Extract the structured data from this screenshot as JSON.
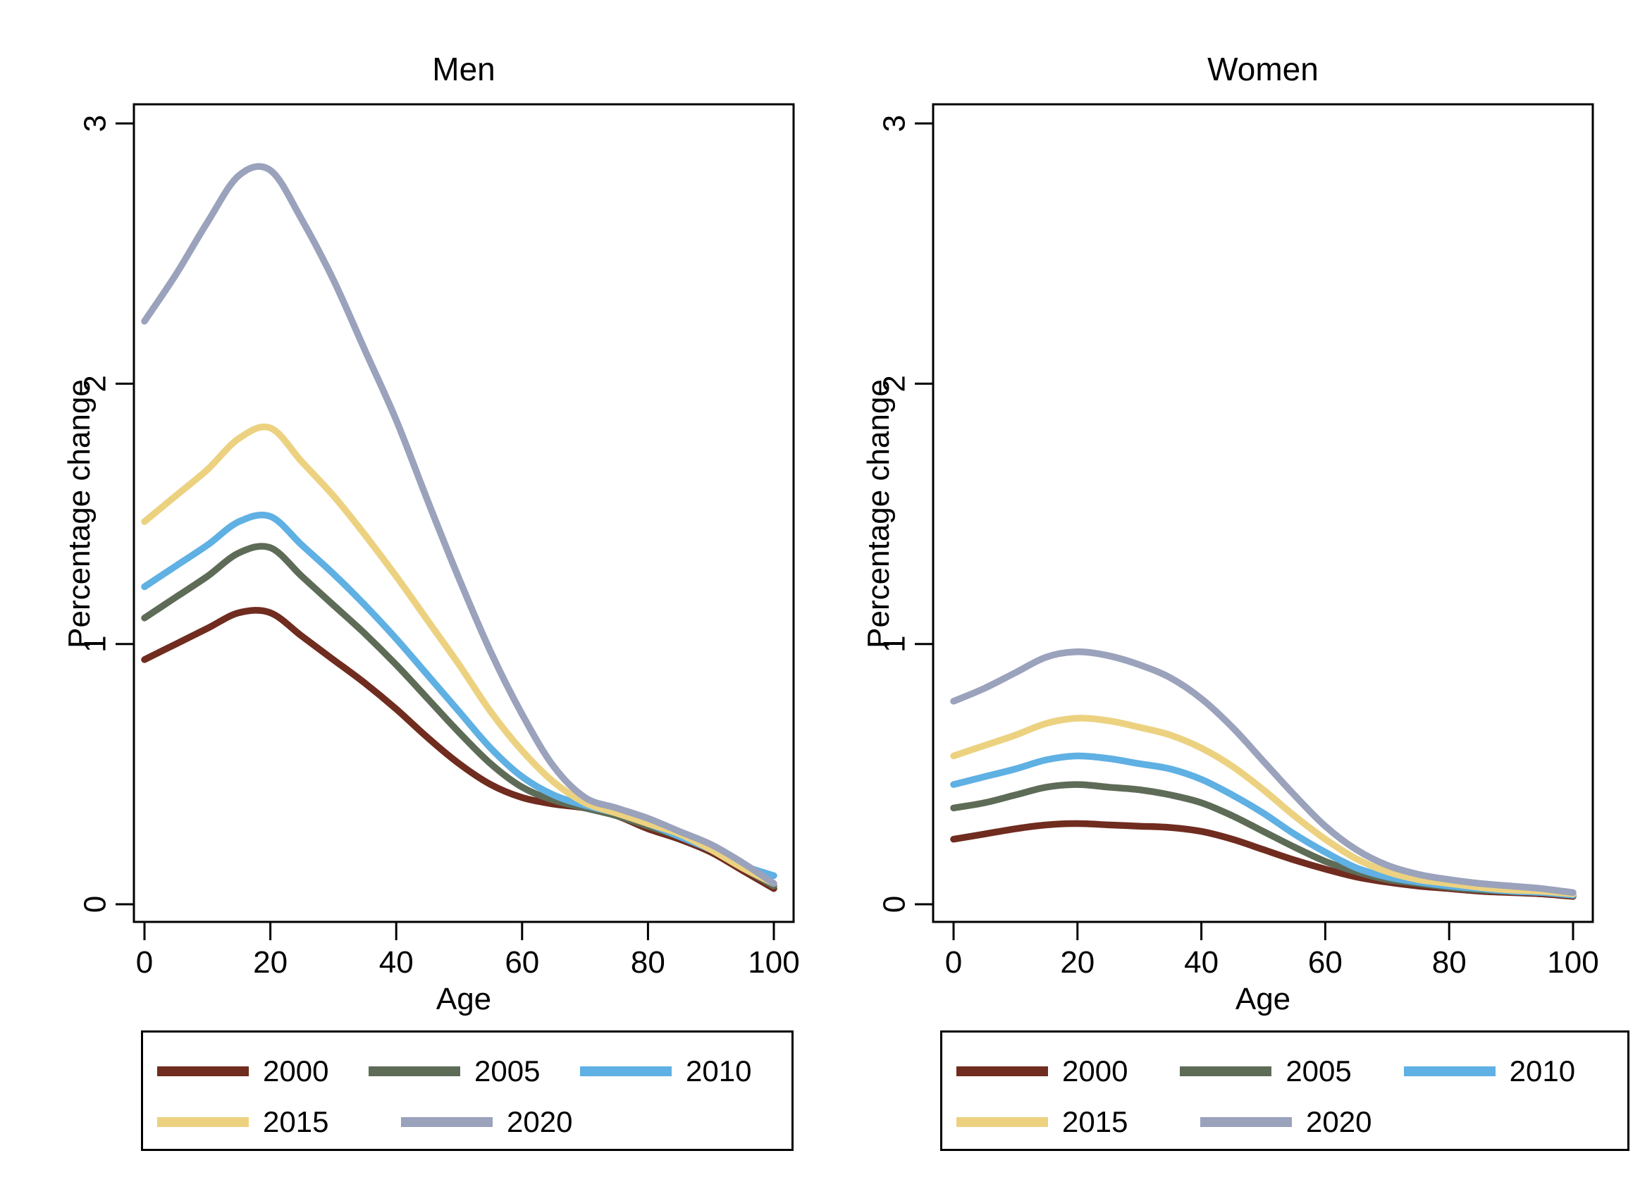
{
  "figure": {
    "background": "#ffffff",
    "axis_color": "#000000"
  },
  "legend": {
    "position": "below-plot",
    "entries": [
      {
        "label": "2000",
        "color": "#702c1f"
      },
      {
        "label": "2005",
        "color": "#5e6c57"
      },
      {
        "label": "2010",
        "color": "#5fb0e3"
      },
      {
        "label": "2015",
        "color": "#ecd280"
      },
      {
        "label": "2020",
        "color": "#9aa2bc"
      }
    ]
  },
  "chart_data": [
    {
      "type": "line",
      "title": "Men",
      "xlabel": "Age",
      "ylabel": "Percentage change",
      "xlim": [
        0,
        100
      ],
      "ylim": [
        0,
        3
      ],
      "x_ticks": [
        0,
        20,
        40,
        60,
        80,
        100
      ],
      "y_ticks": [
        0,
        1,
        2,
        3
      ],
      "grid": false,
      "x": [
        0,
        5,
        10,
        15,
        20,
        25,
        30,
        35,
        40,
        45,
        50,
        55,
        60,
        65,
        70,
        75,
        80,
        85,
        90,
        95,
        100
      ],
      "series": [
        {
          "name": "2000",
          "color": "#702c1f",
          "values": [
            0.94,
            1.0,
            1.06,
            1.12,
            1.12,
            1.03,
            0.94,
            0.85,
            0.75,
            0.64,
            0.54,
            0.46,
            0.41,
            0.385,
            0.37,
            0.34,
            0.29,
            0.25,
            0.2,
            0.13,
            0.06
          ]
        },
        {
          "name": "2005",
          "color": "#5e6c57",
          "values": [
            1.1,
            1.18,
            1.26,
            1.35,
            1.37,
            1.26,
            1.15,
            1.04,
            0.92,
            0.79,
            0.66,
            0.54,
            0.45,
            0.4,
            0.37,
            0.34,
            0.3,
            0.26,
            0.21,
            0.14,
            0.07
          ]
        },
        {
          "name": "2010",
          "color": "#5fb0e3",
          "values": [
            1.22,
            1.3,
            1.38,
            1.47,
            1.49,
            1.38,
            1.27,
            1.15,
            1.02,
            0.88,
            0.74,
            0.6,
            0.49,
            0.42,
            0.38,
            0.35,
            0.31,
            0.26,
            0.21,
            0.15,
            0.11
          ]
        },
        {
          "name": "2015",
          "color": "#ecd280",
          "values": [
            1.47,
            1.57,
            1.67,
            1.79,
            1.83,
            1.7,
            1.57,
            1.42,
            1.26,
            1.09,
            0.92,
            0.74,
            0.59,
            0.47,
            0.39,
            0.35,
            0.31,
            0.27,
            0.21,
            0.14,
            0.08
          ]
        },
        {
          "name": "2020",
          "color": "#9aa2bc",
          "values": [
            2.24,
            2.42,
            2.62,
            2.8,
            2.82,
            2.63,
            2.4,
            2.13,
            1.86,
            1.55,
            1.25,
            0.97,
            0.73,
            0.53,
            0.41,
            0.37,
            0.33,
            0.28,
            0.23,
            0.16,
            0.08
          ]
        }
      ]
    },
    {
      "type": "line",
      "title": "Women",
      "xlabel": "Age",
      "ylabel": "Percentage change",
      "xlim": [
        0,
        100
      ],
      "ylim": [
        0,
        3
      ],
      "x_ticks": [
        0,
        20,
        40,
        60,
        80,
        100
      ],
      "y_ticks": [
        0,
        1,
        2,
        3
      ],
      "grid": false,
      "x": [
        0,
        5,
        10,
        15,
        20,
        25,
        30,
        35,
        40,
        45,
        50,
        55,
        60,
        65,
        70,
        75,
        80,
        85,
        90,
        95,
        100
      ],
      "series": [
        {
          "name": "2000",
          "color": "#702c1f",
          "values": [
            0.25,
            0.27,
            0.29,
            0.305,
            0.31,
            0.305,
            0.3,
            0.295,
            0.28,
            0.25,
            0.21,
            0.17,
            0.135,
            0.105,
            0.085,
            0.07,
            0.06,
            0.05,
            0.045,
            0.04,
            0.03
          ]
        },
        {
          "name": "2005",
          "color": "#5e6c57",
          "values": [
            0.37,
            0.39,
            0.42,
            0.45,
            0.46,
            0.45,
            0.44,
            0.42,
            0.39,
            0.34,
            0.28,
            0.22,
            0.165,
            0.125,
            0.095,
            0.08,
            0.065,
            0.055,
            0.05,
            0.045,
            0.035
          ]
        },
        {
          "name": "2010",
          "color": "#5fb0e3",
          "values": [
            0.46,
            0.49,
            0.52,
            0.555,
            0.57,
            0.56,
            0.54,
            0.52,
            0.48,
            0.42,
            0.35,
            0.27,
            0.2,
            0.14,
            0.105,
            0.085,
            0.07,
            0.06,
            0.05,
            0.045,
            0.035
          ]
        },
        {
          "name": "2015",
          "color": "#ecd280",
          "values": [
            0.57,
            0.61,
            0.65,
            0.695,
            0.715,
            0.705,
            0.68,
            0.65,
            0.6,
            0.53,
            0.44,
            0.34,
            0.25,
            0.175,
            0.125,
            0.095,
            0.08,
            0.065,
            0.055,
            0.05,
            0.04
          ]
        },
        {
          "name": "2020",
          "color": "#9aa2bc",
          "values": [
            0.78,
            0.83,
            0.89,
            0.95,
            0.97,
            0.955,
            0.92,
            0.87,
            0.79,
            0.68,
            0.55,
            0.42,
            0.3,
            0.21,
            0.15,
            0.115,
            0.095,
            0.08,
            0.07,
            0.06,
            0.045
          ]
        }
      ]
    }
  ]
}
